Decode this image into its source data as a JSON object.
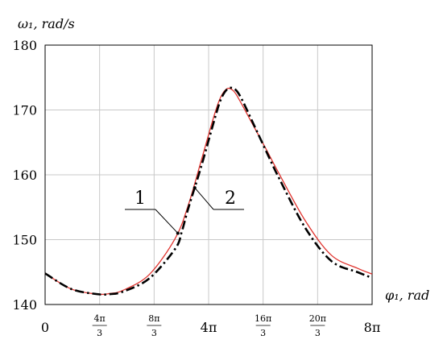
{
  "chart_data": {
    "type": "line",
    "title": "",
    "xlabel": "φ₁, rad",
    "ylabel": "ω₁, rad/s",
    "xlim": [
      0,
      25.1327
    ],
    "ylim": [
      140,
      180
    ],
    "grid": true,
    "y_ticks": [
      140,
      150,
      160,
      170,
      180
    ],
    "y_tick_labels": [
      "140",
      "150",
      "160",
      "170",
      "180"
    ],
    "x_ticks": [
      0,
      4.18879,
      8.37758,
      12.56637,
      16.75516,
      20.94395,
      25.13274
    ],
    "x_tick_labels": [
      {
        "text": "0"
      },
      {
        "num": "4π",
        "den": "3"
      },
      {
        "num": "8π",
        "den": "3"
      },
      {
        "text": "4π"
      },
      {
        "num": "16π",
        "den": "3"
      },
      {
        "num": "20π",
        "den": "3"
      },
      {
        "text": "8π"
      }
    ],
    "series": [
      {
        "name": "1",
        "color": "#e0332e",
        "style": "solid",
        "x": [
          0,
          2,
          4,
          5,
          6,
          8,
          10,
          11,
          12,
          13,
          13.5,
          14,
          14.5,
          15,
          16,
          17,
          18,
          20,
          22,
          24,
          25.13
        ],
        "y": [
          144.8,
          142.4,
          141.6,
          141.7,
          142.2,
          144.6,
          150.2,
          155.3,
          162.2,
          169.2,
          172.0,
          173.3,
          172.9,
          171.3,
          167.6,
          163.9,
          160.1,
          152.9,
          147.6,
          145.6,
          144.7
        ]
      },
      {
        "name": "2",
        "color": "#000000",
        "style": "dashdot",
        "x": [
          0,
          2,
          4,
          5,
          6,
          8,
          10,
          10.5,
          11,
          12,
          13,
          13.5,
          14,
          14.5,
          15,
          16,
          17,
          18,
          20,
          22,
          24,
          25.13
        ],
        "y": [
          144.8,
          142.4,
          141.6,
          141.6,
          142.0,
          144.0,
          148.6,
          151.2,
          154.8,
          161.3,
          168.4,
          171.6,
          173.2,
          173.3,
          172.1,
          167.9,
          163.6,
          159.4,
          151.8,
          146.7,
          145.0,
          144.1
        ]
      }
    ],
    "annotations": [
      {
        "text": "1",
        "points_to": [
          10.2,
          151
        ]
      },
      {
        "text": "2",
        "points_to": [
          11.5,
          158
        ]
      }
    ]
  }
}
